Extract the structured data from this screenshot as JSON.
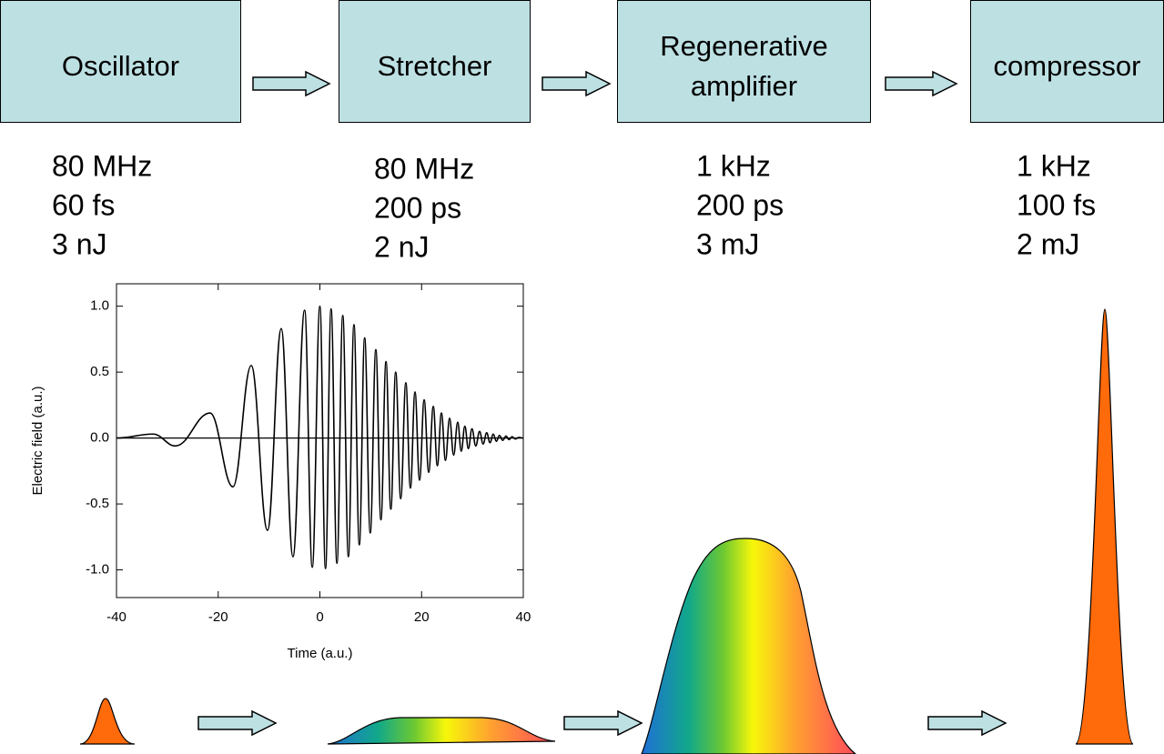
{
  "boxes": [
    {
      "label_lines": [
        "Oscillator"
      ],
      "specs": [
        "80 MHz",
        "60 fs",
        "3 nJ"
      ]
    },
    {
      "label_lines": [
        "Stretcher"
      ],
      "specs": [
        "80 MHz",
        "200 ps",
        "2 nJ"
      ]
    },
    {
      "label_lines": [
        "Regenerative",
        "amplifier"
      ],
      "specs": [
        "1 kHz",
        "200 ps",
        "3 mJ"
      ]
    },
    {
      "label_lines": [
        "compressor"
      ],
      "specs": [
        "1 kHz",
        "100 fs",
        "2 mJ"
      ]
    }
  ],
  "chart_data": {
    "type": "line",
    "x_label": "Time (a.u.)",
    "y_label": "Electric field (a.u.)",
    "xlim": [
      -40,
      40
    ],
    "xticks": [
      -40,
      -20,
      0,
      20,
      40
    ],
    "ylim": [
      -1.21,
      1.17
    ],
    "yticks": [
      {
        "value": -1.0,
        "label": "-1.0"
      },
      -0.5,
      {
        "value": 0.0,
        "label": "0.0"
      },
      0.5,
      {
        "value": 1.0,
        "label": "1.0"
      }
    ],
    "series": [
      {
        "color": "#000000",
        "x": [
          -40,
          -32.8,
          -28.4,
          -21.6,
          -17.1,
          -13.5,
          -10.3,
          -7.6,
          -5.3,
          -3.0,
          -1.5,
          0,
          1.1,
          2.2,
          3.35,
          4.5,
          5.6,
          6.7,
          7.75,
          8.8,
          9.9,
          11.0,
          12.0,
          13.0,
          13.95,
          14.9,
          15.9,
          16.9,
          17.8,
          18.7,
          19.6,
          20.5,
          21.4,
          22.3,
          23.1,
          23.9,
          24.7,
          25.5,
          26.3,
          27.1,
          27.8,
          28.5,
          29.2,
          29.9,
          30.65,
          31.4,
          32.1,
          32.8,
          33.45,
          34.1,
          34.7,
          35.3,
          35.95,
          36.6,
          37.2,
          37.8,
          38.45,
          39.1,
          40
        ],
        "y": [
          0,
          0.03,
          -0.06,
          0.19,
          -0.37,
          0.55,
          -0.7,
          0.83,
          -0.9,
          0.97,
          -0.98,
          1.0,
          -0.99,
          0.98,
          -0.95,
          0.93,
          -0.9,
          0.86,
          -0.81,
          0.76,
          -0.72,
          0.67,
          -0.62,
          0.58,
          -0.54,
          0.5,
          -0.46,
          0.42,
          -0.38,
          0.35,
          -0.32,
          0.29,
          -0.26,
          0.24,
          -0.21,
          0.19,
          -0.17,
          0.15,
          -0.13,
          0.12,
          -0.1,
          0.09,
          -0.08,
          0.07,
          -0.06,
          0.05,
          -0.045,
          0.04,
          -0.035,
          0.03,
          -0.025,
          0.02,
          -0.018,
          0.015,
          -0.012,
          0.01,
          -0.008,
          0.005,
          0
        ]
      }
    ]
  }
}
